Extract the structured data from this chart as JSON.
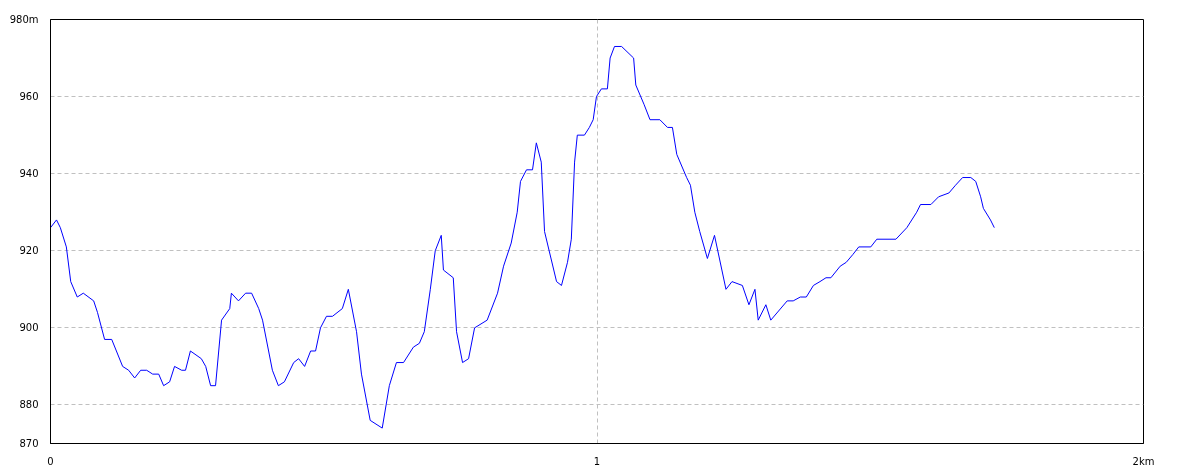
{
  "chart_data": {
    "type": "line",
    "x": [
      0,
      0.011,
      0.018,
      0.029,
      0.037,
      0.049,
      0.06,
      0.079,
      0.086,
      0.099,
      0.112,
      0.132,
      0.143,
      0.154,
      0.165,
      0.176,
      0.187,
      0.198,
      0.207,
      0.218,
      0.227,
      0.24,
      0.247,
      0.256,
      0.276,
      0.284,
      0.293,
      0.302,
      0.313,
      0.328,
      0.331,
      0.344,
      0.357,
      0.368,
      0.381,
      0.388,
      0.406,
      0.417,
      0.428,
      0.445,
      0.454,
      0.465,
      0.476,
      0.485,
      0.494,
      0.505,
      0.516,
      0.534,
      0.545,
      0.56,
      0.569,
      0.585,
      0.607,
      0.62,
      0.633,
      0.646,
      0.664,
      0.675,
      0.684,
      0.695,
      0.704,
      0.715,
      0.719,
      0.737,
      0.743,
      0.754,
      0.765,
      0.776,
      0.799,
      0.818,
      0.829,
      0.843,
      0.854,
      0.86,
      0.871,
      0.882,
      0.889,
      0.898,
      0.904,
      0.926,
      0.935,
      0.946,
      0.953,
      0.959,
      0.964,
      0.977,
      0.986,
      0.993,
      0.999,
      1.008,
      1.019,
      1.024,
      1.032,
      1.045,
      1.067,
      1.071,
      1.086,
      1.097,
      1.115,
      1.129,
      1.138,
      1.146,
      1.164,
      1.171,
      1.179,
      1.188,
      1.202,
      1.215,
      1.236,
      1.247,
      1.266,
      1.278,
      1.289,
      1.295,
      1.309,
      1.318,
      1.348,
      1.359,
      1.372,
      1.383,
      1.396,
      1.408,
      1.419,
      1.428,
      1.445,
      1.456,
      1.468,
      1.479,
      1.501,
      1.512,
      1.547,
      1.567,
      1.585,
      1.592,
      1.611,
      1.625,
      1.644,
      1.656,
      1.669,
      1.684,
      1.693,
      1.702,
      1.707,
      1.72,
      1.727
    ],
    "series": [
      {
        "color": "#0000ff",
        "values": [
          926,
          928,
          926,
          921,
          912,
          908,
          909,
          907,
          904,
          897,
          897,
          890,
          889,
          887,
          889,
          889,
          888,
          888,
          885,
          886,
          890,
          889,
          889,
          894,
          892,
          890,
          885,
          885,
          902,
          905,
          909,
          907,
          909,
          909,
          905,
          902,
          889,
          885,
          886,
          891,
          892,
          890,
          894,
          894,
          900,
          903,
          903,
          905,
          910,
          899,
          888,
          876,
          874,
          885,
          891,
          891,
          895,
          896,
          899,
          910,
          920,
          924,
          915,
          913,
          899,
          891,
          892,
          900,
          902,
          909,
          916,
          922,
          930,
          938,
          941,
          941,
          948,
          943,
          925,
          912,
          911,
          917,
          923,
          943,
          950,
          950,
          952,
          954,
          960,
          962,
          962,
          970,
          973,
          973,
          970,
          963,
          958,
          954,
          954,
          952,
          952,
          945,
          939,
          937,
          930,
          925,
          918,
          924,
          910,
          912,
          911,
          906,
          910,
          902,
          906,
          902,
          907,
          907,
          908,
          908,
          911,
          912,
          913,
          913,
          916,
          917,
          919,
          921,
          921,
          923,
          923,
          926,
          930,
          932,
          932,
          934,
          935,
          937,
          939,
          939,
          938,
          934,
          931,
          928,
          926
        ]
      }
    ],
    "xlim": [
      0,
      2
    ],
    "ylim": [
      870,
      980
    ],
    "xticks": [
      0,
      1,
      {
        "value": 2,
        "label": "2km"
      }
    ],
    "yticks": [
      870,
      880,
      900,
      920,
      940,
      960,
      {
        "value": 980,
        "label": "980m"
      }
    ],
    "grid": true,
    "line_style": "solid",
    "marker": "none"
  }
}
